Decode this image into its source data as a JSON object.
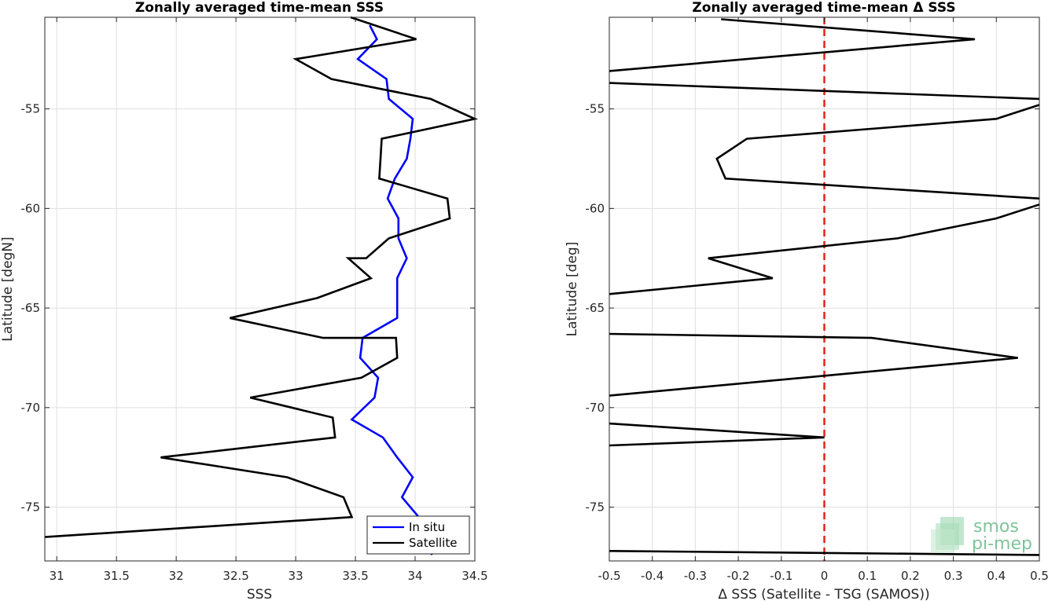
{
  "chart_data": [
    {
      "type": "line",
      "title": "Zonally averaged time-mean SSS",
      "xlabel": "SSS",
      "ylabel": "Latitude [degN]",
      "xlim": [
        30.9,
        34.5
      ],
      "ylim": [
        -77.7,
        -50.4
      ],
      "xticks": [
        31,
        31.5,
        32,
        32.5,
        33,
        33.5,
        34,
        34.5
      ],
      "xtick_labels": [
        "31",
        "31.5",
        "32",
        "32.5",
        "33",
        "33.5",
        "34",
        "34.5"
      ],
      "yticks": [
        -75,
        -70,
        -65,
        -60,
        -55
      ],
      "ytick_labels": [
        "-75",
        "-70",
        "-65",
        "-60",
        "-55"
      ],
      "grid": true,
      "legend_position": "bottom-right",
      "series": [
        {
          "name": "In situ",
          "color": "#0000ff",
          "points": [
            [
              33.62,
              -50.8
            ],
            [
              33.68,
              -51.5
            ],
            [
              33.52,
              -52.5
            ],
            [
              33.76,
              -53.5
            ],
            [
              33.78,
              -54.5
            ],
            [
              33.98,
              -55.5
            ],
            [
              33.96,
              -56.5
            ],
            [
              33.93,
              -57.5
            ],
            [
              33.83,
              -58.5
            ],
            [
              33.77,
              -59.5
            ],
            [
              33.86,
              -60.5
            ],
            [
              33.86,
              -61.5
            ],
            [
              33.93,
              -62.5
            ],
            [
              33.85,
              -63.5
            ],
            [
              33.85,
              -64.5
            ],
            [
              33.85,
              -65.5
            ],
            [
              33.56,
              -66.5
            ],
            [
              33.54,
              -67.5
            ],
            [
              33.69,
              -68.5
            ],
            [
              33.66,
              -69.5
            ],
            [
              33.47,
              -70.6
            ],
            [
              33.73,
              -71.5
            ],
            [
              33.85,
              -72.5
            ],
            [
              33.98,
              -73.5
            ],
            [
              33.89,
              -74.5
            ],
            [
              34.03,
              -75.5
            ],
            [
              34.09,
              -76.5
            ],
            [
              34.14,
              -77.4
            ]
          ]
        },
        {
          "name": "Satellite",
          "color": "#000000",
          "points": [
            [
              33.46,
              -50.4
            ],
            [
              34.01,
              -51.5
            ],
            [
              33.0,
              -52.5
            ],
            [
              33.3,
              -53.5
            ],
            [
              34.13,
              -54.5
            ],
            [
              34.5,
              -55.5
            ],
            [
              33.72,
              -56.5
            ],
            [
              33.71,
              -57.5
            ],
            [
              33.7,
              -58.5
            ],
            [
              34.27,
              -59.5
            ],
            [
              34.29,
              -60.5
            ],
            [
              33.78,
              -61.5
            ],
            [
              33.59,
              -62.5
            ],
            [
              33.44,
              -62.5
            ],
            [
              33.63,
              -63.5
            ],
            [
              33.18,
              -64.5
            ],
            [
              32.45,
              -65.5
            ],
            [
              33.23,
              -66.5
            ],
            [
              33.84,
              -66.5
            ],
            [
              33.85,
              -67.5
            ],
            [
              33.55,
              -68.5
            ],
            [
              32.62,
              -69.5
            ],
            [
              33.31,
              -70.5
            ],
            [
              33.33,
              -71.5
            ],
            [
              31.87,
              -72.5
            ],
            [
              32.93,
              -73.5
            ],
            [
              33.4,
              -74.5
            ],
            [
              33.47,
              -75.5
            ],
            [
              30.9,
              -76.5
            ]
          ]
        }
      ]
    },
    {
      "type": "line",
      "title": "Zonally averaged time-mean Δ SSS",
      "xlabel": "Δ SSS (Satellite - TSG (SAMOS))",
      "ylabel": "Latitude [deg]",
      "xlim": [
        -0.5,
        0.5
      ],
      "ylim": [
        -77.7,
        -50.4
      ],
      "xticks": [
        -0.5,
        -0.4,
        -0.3,
        -0.2,
        -0.1,
        0,
        0.1,
        0.2,
        0.3,
        0.4,
        0.5
      ],
      "xtick_labels": [
        "-0.5",
        "-0.4",
        "-0.3",
        "-0.2",
        "-0.1",
        "0",
        "0.1",
        "0.2",
        "0.3",
        "0.4",
        "0.5"
      ],
      "yticks": [
        -75,
        -70,
        -65,
        -60,
        -55
      ],
      "ytick_labels": [
        "-75",
        "-70",
        "-65",
        "-60",
        "-55"
      ],
      "grid": true,
      "reference_line": {
        "x": 0,
        "color": "#e8211a",
        "style": "dashed"
      },
      "series": [
        {
          "color": "#000000",
          "points": [
            [
              -0.24,
              -50.5
            ],
            [
              0.35,
              -51.5
            ],
            [
              -0.5,
              -53.1
            ],
            [
              null,
              null
            ],
            [
              -0.5,
              -53.7
            ],
            [
              0.5,
              -54.5
            ],
            [
              null,
              null
            ],
            [
              0.5,
              -54.8
            ],
            [
              0.4,
              -55.5
            ],
            [
              -0.18,
              -56.5
            ],
            [
              -0.25,
              -57.5
            ],
            [
              -0.23,
              -58.5
            ],
            [
              0.5,
              -59.5
            ],
            [
              null,
              null
            ],
            [
              0.5,
              -59.8
            ],
            [
              0.4,
              -60.5
            ],
            [
              0.17,
              -61.5
            ],
            [
              -0.27,
              -62.5
            ],
            [
              -0.12,
              -63.5
            ],
            [
              -0.5,
              -64.3
            ],
            [
              null,
              null
            ],
            [
              -0.5,
              -66.3
            ],
            [
              0.11,
              -66.5
            ],
            [
              0.45,
              -67.5
            ],
            [
              -0.5,
              -69.4
            ],
            [
              null,
              null
            ],
            [
              -0.5,
              -70.8
            ],
            [
              0.0,
              -71.5
            ],
            [
              -0.5,
              -71.9
            ],
            [
              null,
              null
            ],
            [
              -0.5,
              -77.2
            ],
            [
              0.5,
              -77.4
            ]
          ]
        }
      ]
    }
  ],
  "logo": {
    "line1": "smos",
    "line2": "pi-mep"
  }
}
